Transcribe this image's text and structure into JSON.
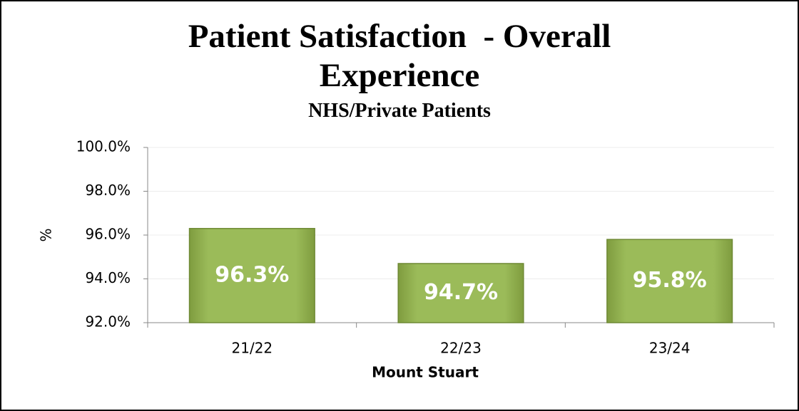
{
  "chart_data": {
    "type": "bar",
    "title": "Patient Satisfaction  - Overall Experience",
    "subtitle": "NHS/Private Patients",
    "y_label": "%",
    "x_label": "Mount Stuart",
    "categories": [
      "21/22",
      "22/23",
      "23/24"
    ],
    "values": [
      96.3,
      94.7,
      95.8
    ],
    "value_labels": [
      "96.3%",
      "94.7%",
      "95.8%"
    ],
    "color": "#9bbb59",
    "ylim": [
      92,
      100
    ],
    "yticks": [
      {
        "value": 92,
        "label": "92.0%"
      },
      {
        "value": 94,
        "label": "94.0%"
      },
      {
        "value": 96,
        "label": "96.0%"
      },
      {
        "value": 98,
        "label": "98.0%"
      },
      {
        "value": 100,
        "label": "100.0%"
      }
    ],
    "grid": true
  }
}
